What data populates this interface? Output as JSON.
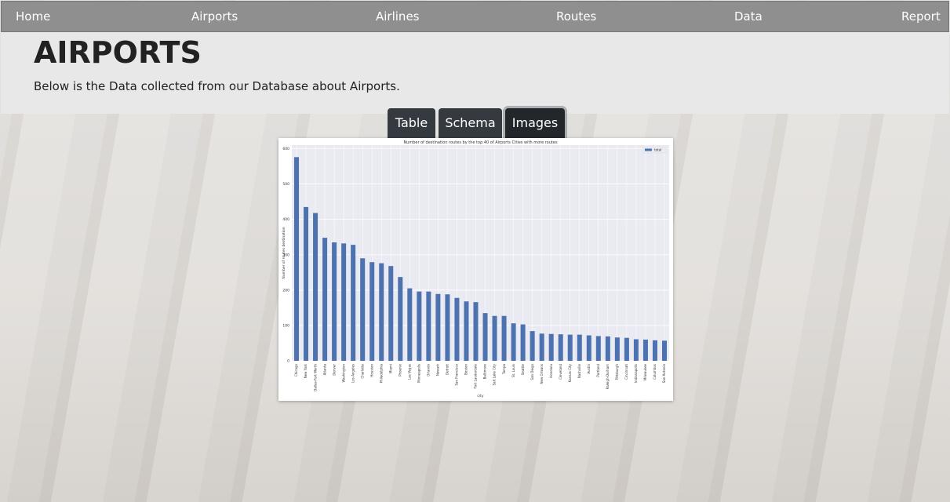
{
  "nav": [
    "Home",
    "Airports",
    "Airlines",
    "Routes",
    "Data",
    "Report"
  ],
  "header": {
    "title": "AIRPORTS",
    "subtitle": "Below is the Data collected from our Database about Airports."
  },
  "tabs": [
    "Table",
    "Schema",
    "Images"
  ],
  "chart_data": {
    "type": "bar",
    "title": "Number of destination routes by the top 40 of Airports Cities with more routes",
    "x_label": "city",
    "y_label": "Number of routes destination",
    "categories": [
      "Chicago",
      "New York",
      "Dallas-Fort Worth",
      "Atlanta",
      "Denver",
      "Washington",
      "Los Angeles",
      "Charlotte",
      "Houston",
      "Philadelphia",
      "Miami",
      "Phoenix",
      "Las Vegas",
      "Minneapolis",
      "Orlando",
      "Newark",
      "Detroit",
      "San Francisco",
      "Boston",
      "Fort Lauderdale",
      "Baltimore",
      "Salt Lake City",
      "Tampa",
      "St. Louis",
      "Seattle",
      "San Diego",
      "New Orleans",
      "Honolulu",
      "Cleveland",
      "Kansas City",
      "Nashville",
      "Austin",
      "Portland",
      "Raleigh-Durham",
      "Pittsburgh",
      "Cincinnati",
      "Indianapolis",
      "Milwaukee",
      "Columbus",
      "San Antonio"
    ],
    "series": [
      {
        "name": "total",
        "color": "#4c72b0",
        "values": [
          576,
          435,
          418,
          348,
          335,
          332,
          328,
          290,
          279,
          276,
          268,
          237,
          205,
          196,
          196,
          189,
          188,
          178,
          168,
          166,
          135,
          127,
          127,
          106,
          103,
          84,
          77,
          76,
          75,
          74,
          74,
          72,
          70,
          69,
          66,
          65,
          61,
          60,
          58,
          57
        ]
      }
    ],
    "ylim": [
      0,
      610
    ],
    "yticks": [
      0,
      100,
      200,
      300,
      400,
      500,
      600
    ],
    "grid": true,
    "legend": "upper right"
  }
}
